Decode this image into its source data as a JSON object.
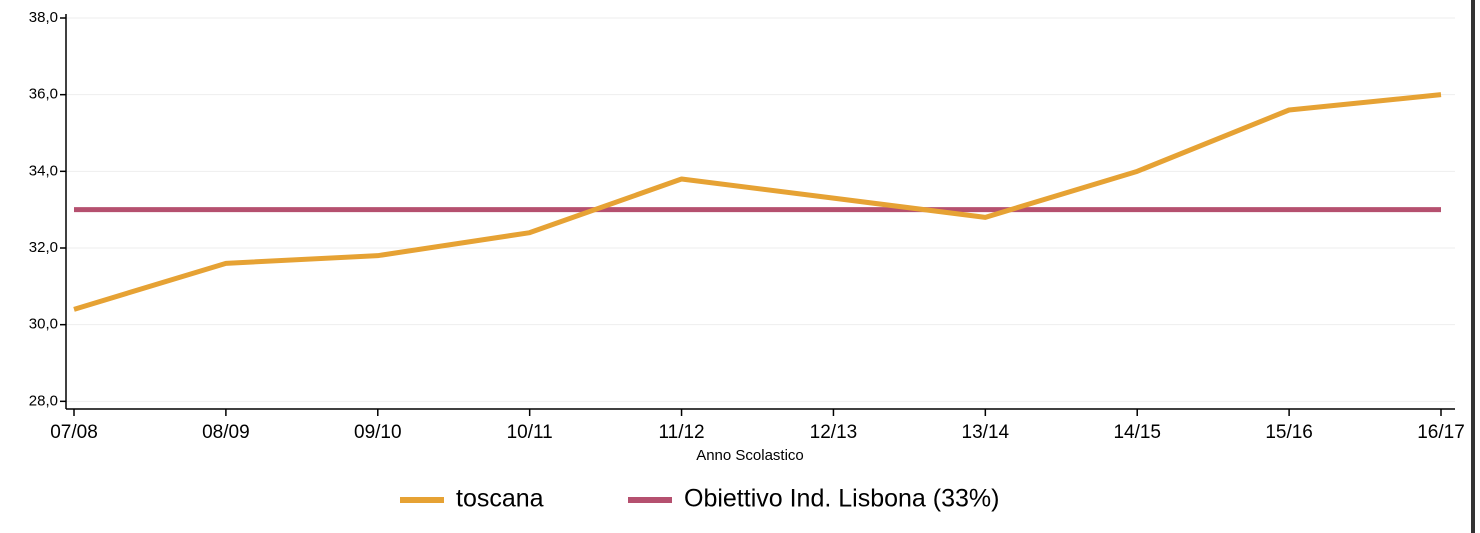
{
  "chart_data": {
    "type": "line",
    "x_label": "Anno Scolastico",
    "categories": [
      "07/08",
      "08/09",
      "09/10",
      "10/11",
      "11/12",
      "12/13",
      "13/14",
      "14/15",
      "15/16",
      "16/17"
    ],
    "series": [
      {
        "name": "toscana",
        "color": "#e6a234",
        "values": [
          30.4,
          31.6,
          31.8,
          32.4,
          33.8,
          33.3,
          32.8,
          34.0,
          35.6,
          36.0
        ]
      },
      {
        "name": "Obiettivo Ind. Lisbona (33%)",
        "color": "#b5506f",
        "values": [
          33,
          33,
          33,
          33,
          33,
          33,
          33,
          33,
          33,
          33
        ]
      }
    ],
    "ylim": [
      27.8,
      38
    ],
    "yticks": [
      {
        "value": 28,
        "label": "28,0"
      },
      {
        "value": 30,
        "label": "30,0"
      },
      {
        "value": 32,
        "label": "32,0"
      },
      {
        "value": 34,
        "label": "34,0"
      },
      {
        "value": 36,
        "label": "36,0"
      },
      {
        "value": 38,
        "label": "38,0"
      }
    ],
    "grid": true
  }
}
